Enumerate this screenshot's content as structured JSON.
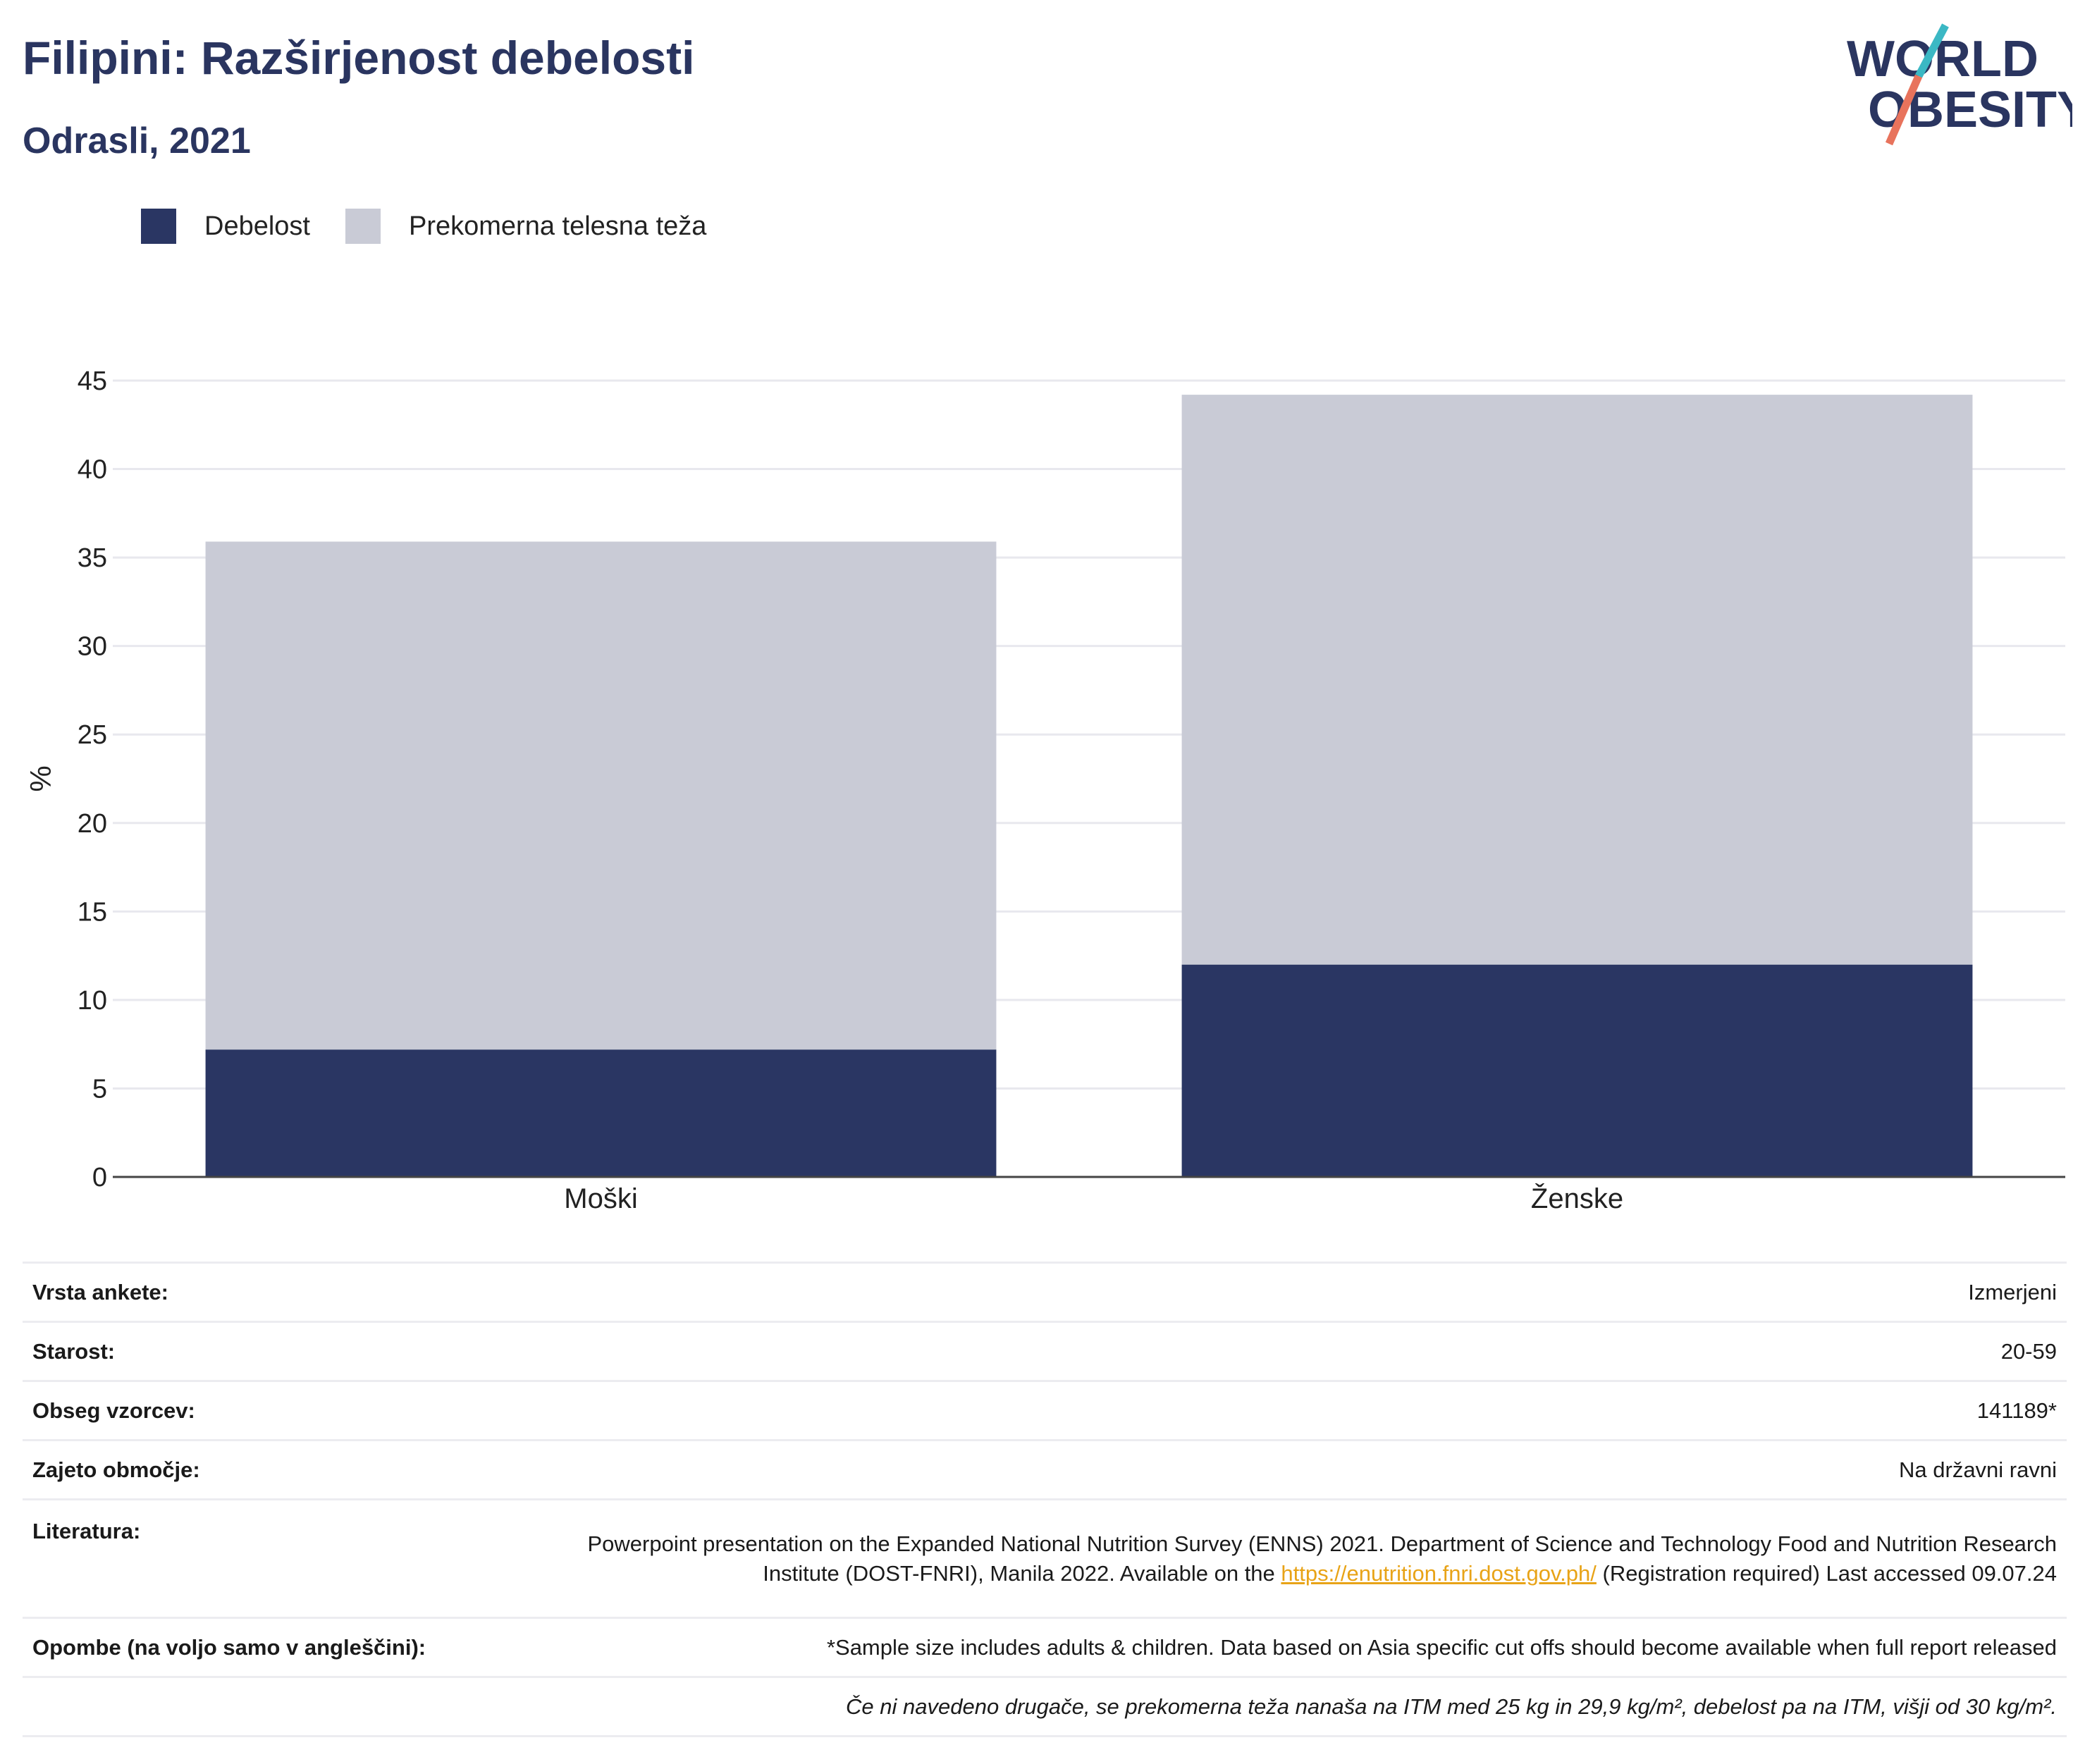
{
  "title": "Filipini: Razširjenost debelosti",
  "subtitle": "Odrasli, 2021",
  "logo": {
    "line1": "WORLD",
    "line2": "OBESITY"
  },
  "colors": {
    "obesity": "#2a3663",
    "overweight": "#c9cbd6",
    "title": "#2a3560",
    "link": "#e8a317"
  },
  "chart_data": {
    "type": "bar",
    "stacked": true,
    "categories": [
      "Moški",
      "Ženske"
    ],
    "series": [
      {
        "name": "Debelost",
        "values": [
          7.2,
          12.0
        ]
      },
      {
        "name": "Prekomerna telesna teža",
        "values": [
          28.7,
          32.2
        ]
      }
    ],
    "ylabel": "%",
    "ylim": [
      0,
      45
    ],
    "yticks": [
      0,
      5,
      10,
      15,
      20,
      25,
      30,
      35,
      40,
      45
    ],
    "grid": true,
    "legend": "top-left"
  },
  "info": {
    "survey_type": {
      "label": "Vrsta ankete:",
      "value": "Izmerjeni"
    },
    "age": {
      "label": "Starost:",
      "value": "20-59"
    },
    "sample": {
      "label": "Obseg vzorcev:",
      "value": "141189*"
    },
    "area": {
      "label": "Zajeto območje:",
      "value": "Na državni ravni"
    },
    "literature": {
      "label": "Literatura:",
      "text1": "Powerpoint presentation on the Expanded National Nutrition Survey (ENNS) 2021. Department of Science and Technology Food and Nutrition Research Institute (DOST-FNRI), Manila 2022. Available on the",
      "link": "https://enutrition.fnri.dost.gov.ph/",
      "text2": "(Registration required) Last accessed 09.07.24"
    },
    "notes": {
      "label": "Opombe (na voljo samo v angleščini):",
      "value": "*Sample size includes adults & children. Data based on Asia specific cut offs should become available when full report released"
    },
    "footnote": "Če ni navedeno drugače, se prekomerna teža nanaša na ITM med 25 kg in 29,9 kg/m², debelost pa na ITM, višji od 30 kg/m²."
  }
}
